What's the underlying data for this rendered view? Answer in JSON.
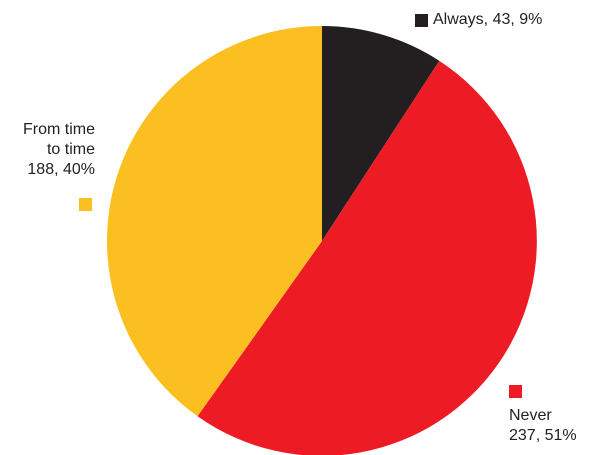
{
  "chart_data": {
    "type": "pie",
    "title": "",
    "slices": [
      {
        "label": "Always",
        "value": 43,
        "percent": 9,
        "color": "#231f20",
        "display_line1": "Always, 43, 9%",
        "display_line2": ""
      },
      {
        "label": "Never",
        "value": 237,
        "percent": 51,
        "color": "#ed1c24",
        "display_line1": "Never",
        "display_line2": "237, 51%"
      },
      {
        "label": "From time to time",
        "value": 188,
        "percent": 40,
        "color": "#fbbf21",
        "display_line1": "From time",
        "display_line2": "to time",
        "display_line3": "188, 40%"
      }
    ],
    "start_angle_deg": 0,
    "direction": "clockwise"
  }
}
